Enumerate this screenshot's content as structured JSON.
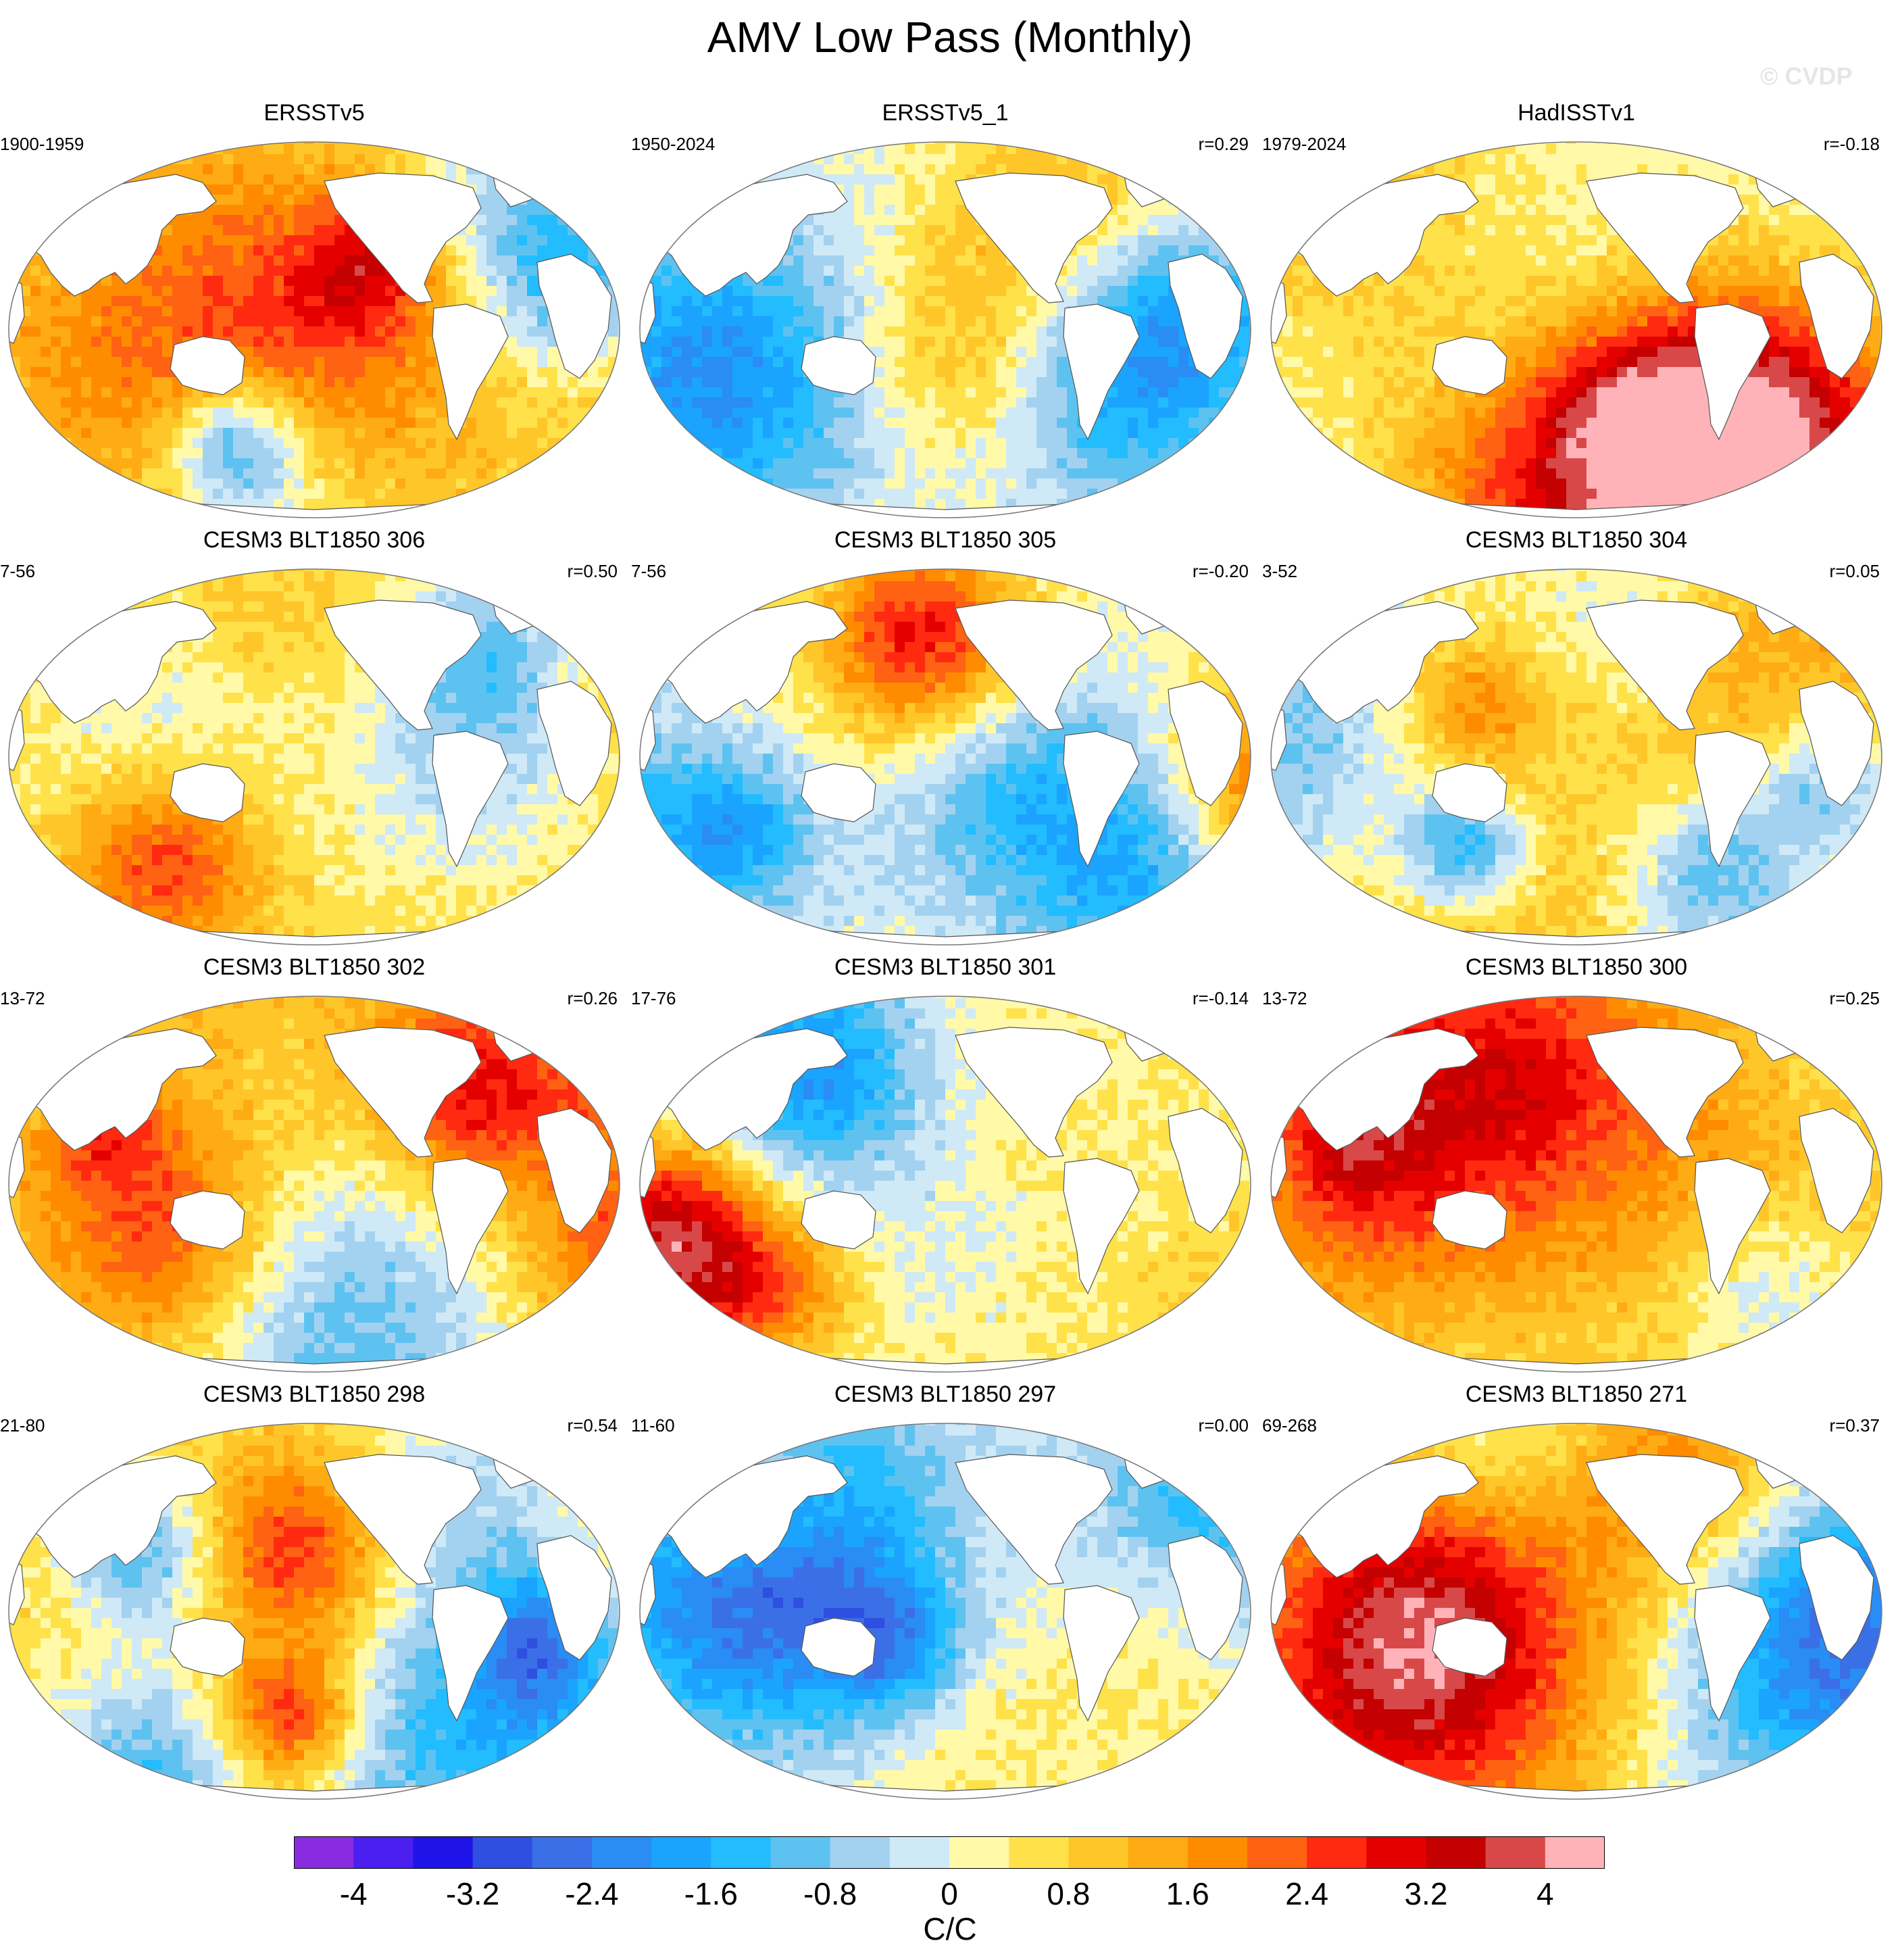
{
  "figure": {
    "title": "AMV Low Pass (Monthly)",
    "watermark": "© CVDP"
  },
  "panels": [
    {
      "title": "ERSSTv5",
      "period": "1900-1959",
      "corr": "",
      "seed": 11,
      "bias": 0.9
    },
    {
      "title": "ERSSTv5_1",
      "period": "1950-2024",
      "corr": "r=0.29",
      "seed": 23,
      "bias": 0.1
    },
    {
      "title": "HadISSTv1",
      "period": "1979-2024",
      "corr": "r=-0.18",
      "seed": 37,
      "bias": 0.2
    },
    {
      "title": "CESM3 BLT1850 306",
      "period": "7-56",
      "corr": "r=0.50",
      "seed": 41,
      "bias": 0.6
    },
    {
      "title": "CESM3 BLT1850 305",
      "period": "7-56",
      "corr": "r=-0.20",
      "seed": 53,
      "bias": 0.2
    },
    {
      "title": "CESM3 BLT1850 304",
      "period": "3-52",
      "corr": "r=0.05",
      "seed": 67,
      "bias": 0.5
    },
    {
      "title": "CESM3 BLT1850 302",
      "period": "13-72",
      "corr": "r=0.26",
      "seed": 71,
      "bias": 1.1
    },
    {
      "title": "CESM3 BLT1850 301",
      "period": "17-76",
      "corr": "r=-0.14",
      "seed": 83,
      "bias": 0.4
    },
    {
      "title": "CESM3 BLT1850 300",
      "period": "13-72",
      "corr": "r=0.25",
      "seed": 97,
      "bias": 0.6
    },
    {
      "title": "CESM3 BLT1850 298",
      "period": "21-80",
      "corr": "r=0.54",
      "seed": 101,
      "bias": 0.7
    },
    {
      "title": "CESM3 BLT1850 297",
      "period": "11-60",
      "corr": "r=0.00",
      "seed": 113,
      "bias": 0.1
    },
    {
      "title": "CESM3 BLT1850 271",
      "period": "69-268",
      "corr": "r=0.37",
      "seed": 127,
      "bias": 0.6
    }
  ],
  "colorbar": {
    "units": "C/C",
    "tick_labels": [
      "-4",
      "-3.2",
      "-2.4",
      "-1.6",
      "-0.8",
      "0",
      "0.8",
      "1.6",
      "2.4",
      "3.2",
      "4"
    ],
    "colors": [
      "#8a2be2",
      "#4a1ff0",
      "#1e14e8",
      "#2f4fe0",
      "#3a6fe8",
      "#2a8cf5",
      "#1aa3ff",
      "#22bcff",
      "#5ec2f0",
      "#a3d2f0",
      "#cfe9f7",
      "#fff9a8",
      "#ffe14a",
      "#ffc62a",
      "#ffab14",
      "#ff8c00",
      "#ff6212",
      "#ff2a10",
      "#e50000",
      "#c40000",
      "#d94848",
      "#ffb3b8"
    ]
  }
}
